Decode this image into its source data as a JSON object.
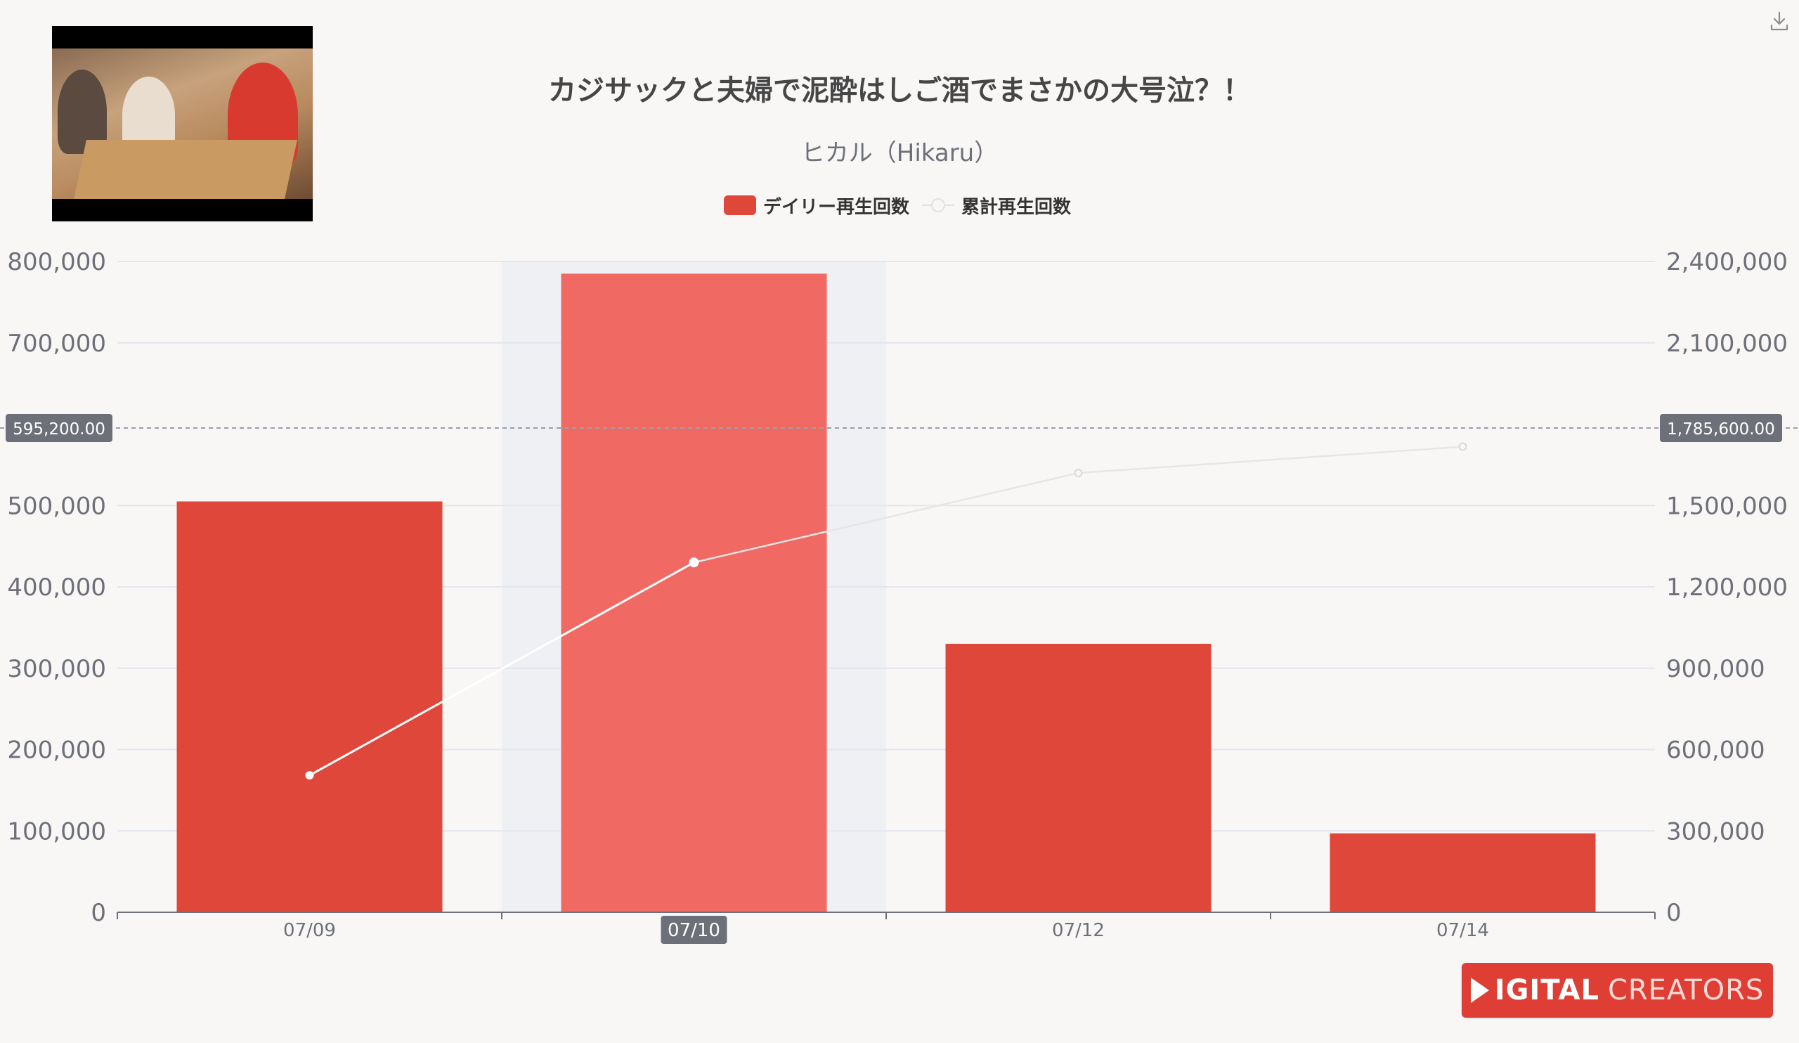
{
  "toolbar": {
    "download_icon": "download-icon"
  },
  "thumbnail": {
    "alt": "video-thumbnail"
  },
  "brand": {
    "part1": "IGITAL",
    "part2": "CREATORS",
    "color": "#df3e35"
  },
  "colors": {
    "bar": "#df473a",
    "bar_emphasis": "#f06a63",
    "line": "#ffffff",
    "line_faded": "#e6e6e6",
    "axis_text": "#6e7079",
    "tooltip_bg": "#6e7079"
  },
  "chart_data": {
    "type": "bar",
    "title": "カジサックと夫婦で泥酔はしご酒でまさかの大号泣？！",
    "subtitle": "ヒカル（Hikaru）",
    "categories": [
      "07/09",
      "07/10",
      "07/12",
      "07/14"
    ],
    "series": [
      {
        "name": "デイリー再生回数",
        "type": "bar",
        "axis": "left",
        "values": [
          505000,
          785000,
          330000,
          97000
        ]
      },
      {
        "name": "累計再生回数",
        "type": "line",
        "axis": "right",
        "values": [
          505000,
          1290000,
          1620000,
          1717000
        ]
      }
    ],
    "y_left": {
      "min": 0,
      "max": 800000,
      "ticks": [
        "0",
        "100,000",
        "200,000",
        "300,000",
        "400,000",
        "500,000",
        "700,000",
        "800,000"
      ]
    },
    "y_right": {
      "min": 0,
      "max": 2400000,
      "ticks": [
        "0",
        "300,000",
        "600,000",
        "900,000",
        "1,200,000",
        "1,500,000",
        "2,100,000",
        "2,400,000"
      ]
    },
    "highlighted_category": "07/10",
    "pointer": {
      "left_value": 595200,
      "left_label": "595,200.00",
      "right_label": "1,785,600.00"
    },
    "grid": true,
    "legend_position": "top-center"
  }
}
